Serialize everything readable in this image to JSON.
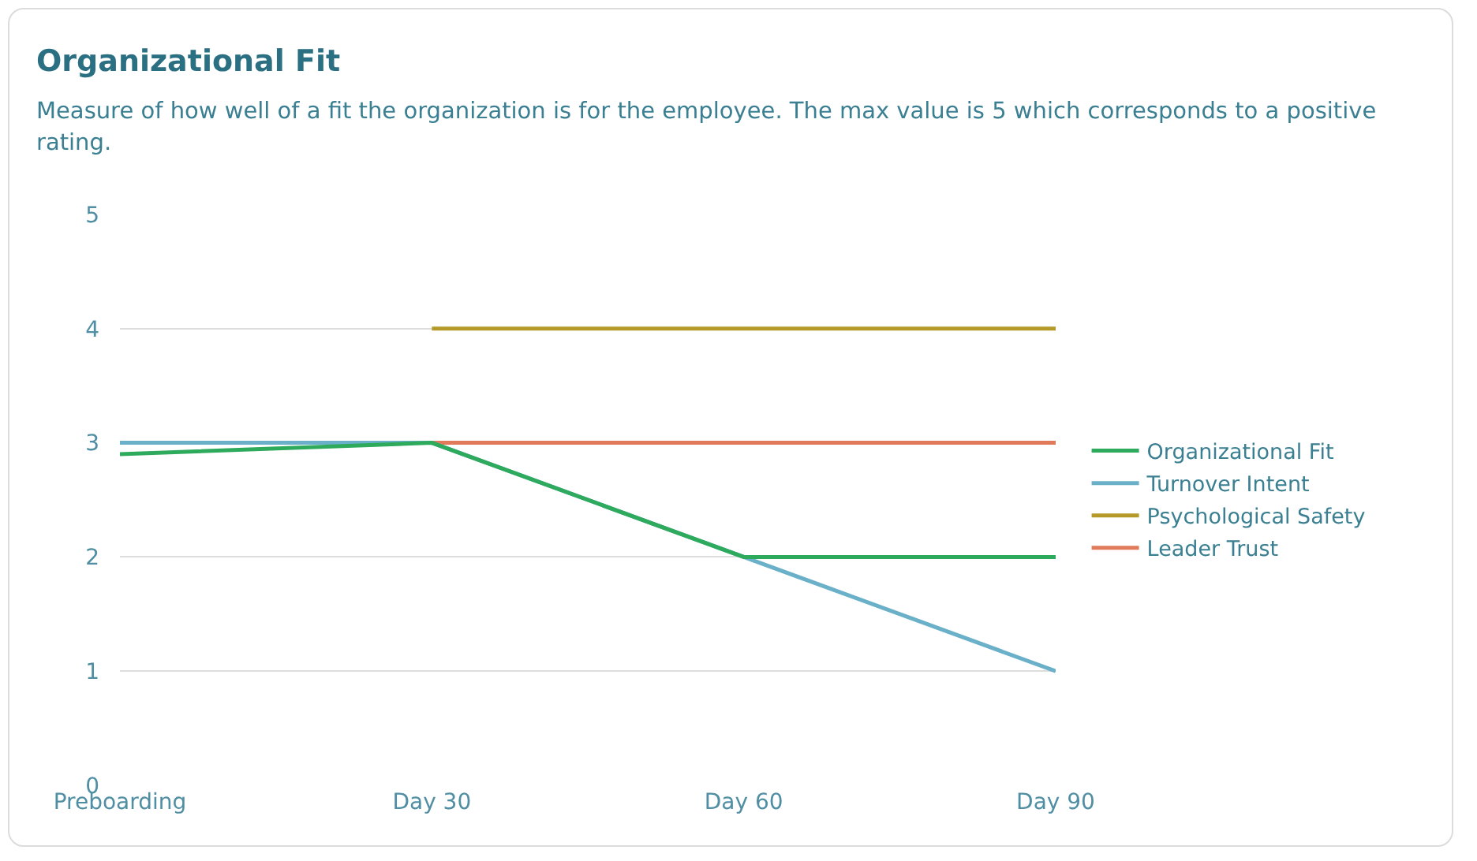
{
  "chart_data": {
    "type": "line",
    "title": "Organizational Fit",
    "subtitle": "Measure of how well of a fit the organization is for the employee. The max value is 5 which corresponds to a positive rating.",
    "categories": [
      "Preboarding",
      "Day 30",
      "Day 60",
      "Day 90"
    ],
    "series": [
      {
        "name": "Organizational Fit",
        "color": "#2eaa5c",
        "values": [
          2.9,
          3,
          2,
          2
        ]
      },
      {
        "name": "Turnover Intent",
        "color": "#6ab0c8",
        "values": [
          3,
          3,
          2,
          1
        ]
      },
      {
        "name": "Psychological Safety",
        "color": "#b59a2a",
        "values": [
          null,
          4,
          4,
          4
        ]
      },
      {
        "name": "Leader Trust",
        "color": "#e07a5a",
        "values": [
          null,
          3,
          3,
          3
        ]
      }
    ],
    "ylim": [
      0,
      5
    ],
    "yticks": [
      0,
      1,
      2,
      3,
      4,
      5
    ],
    "grid": "y",
    "legend": "right"
  }
}
